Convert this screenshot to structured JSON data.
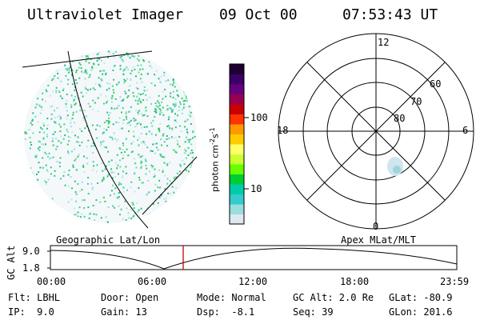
{
  "header": {
    "instrument": "Ultraviolet Imager",
    "date": "09 Oct 00",
    "time": "07:53:43 UT"
  },
  "colorbar": {
    "unit_label": "photon cm",
    "unit_exp1": "-2",
    "unit_s": "s",
    "unit_exp2": "-1",
    "ticks": [
      "100",
      "10"
    ],
    "colors": [
      "#1e0033",
      "#3a0066",
      "#660080",
      "#99004d",
      "#cc0000",
      "#ff3300",
      "#ff9900",
      "#ffcc00",
      "#ffff66",
      "#ccff33",
      "#66ff00",
      "#00cc33",
      "#00ccaa",
      "#33cccc",
      "#99dddd",
      "#dde8f0"
    ]
  },
  "panels": {
    "left_title": "Geographic Lat/Lon",
    "right_title": "Apex MLat/MLT"
  },
  "polar": {
    "mlt_labels": [
      "12",
      "18",
      "6",
      "0"
    ],
    "lat_labels": [
      "60",
      "70",
      "80"
    ]
  },
  "timeline": {
    "ylabel": "GC Alt",
    "yticks": [
      "9.0",
      "1.8"
    ],
    "xticks": [
      "00:00",
      "06:00",
      "12:00",
      "18:00",
      "23:59"
    ],
    "marker_time": "07:53:43",
    "marker_color": "#cc0000"
  },
  "info": {
    "row1": [
      "Flt: LBHL",
      "Door: Open",
      "Mode: Normal",
      "GC Alt: 2.0 Re",
      "GLat: -80.9"
    ],
    "row2": [
      "IP:  9.0",
      "Gain: 13",
      "Dsp:  -8.1",
      "Seq: 39",
      "GLon: 201.6"
    ]
  }
}
